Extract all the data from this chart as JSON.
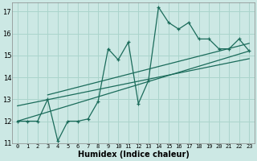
{
  "xlabel": "Humidex (Indice chaleur)",
  "xlim": [
    -0.5,
    23.5
  ],
  "ylim": [
    11.0,
    17.4
  ],
  "yticks": [
    11,
    12,
    13,
    14,
    15,
    16,
    17
  ],
  "xticks": [
    0,
    1,
    2,
    3,
    4,
    5,
    6,
    7,
    8,
    9,
    10,
    11,
    12,
    13,
    14,
    15,
    16,
    17,
    18,
    19,
    20,
    21,
    22,
    23
  ],
  "bg_color": "#cce8e4",
  "grid_color": "#aad4cc",
  "line_color": "#1a6b5a",
  "main_x": [
    0,
    1,
    2,
    3,
    4,
    5,
    6,
    7,
    8,
    9,
    10,
    11,
    12,
    13,
    14,
    15,
    16,
    17,
    18,
    19,
    20,
    21,
    22,
    23
  ],
  "main_y": [
    12.0,
    12.0,
    12.0,
    13.0,
    11.1,
    12.0,
    12.0,
    12.1,
    12.9,
    15.3,
    14.8,
    15.6,
    12.8,
    13.85,
    17.2,
    16.5,
    16.2,
    16.5,
    15.75,
    15.75,
    15.3,
    15.3,
    15.75,
    15.2
  ],
  "trend_lines": [
    {
      "x": [
        0,
        23
      ],
      "y": [
        12.0,
        15.2
      ]
    },
    {
      "x": [
        0,
        23
      ],
      "y": [
        12.7,
        14.85
      ]
    },
    {
      "x": [
        3,
        23
      ],
      "y": [
        13.2,
        15.55
      ]
    }
  ]
}
